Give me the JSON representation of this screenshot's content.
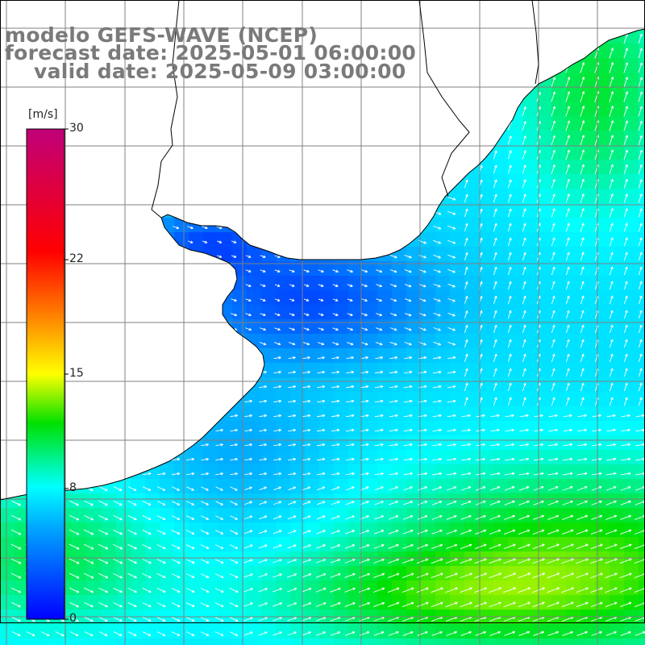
{
  "title": {
    "line1": "modelo GEFS-WAVE (NCEP)",
    "line2": "forecast date: 2025-05-01 06:00:00",
    "line3": "valid date: 2025-05-09 03:00:00"
  },
  "colorbar": {
    "unit": "[m/s]",
    "ticks": [
      {
        "value": 30,
        "label": "30"
      },
      {
        "value": 22,
        "label": "22"
      },
      {
        "value": 15,
        "label": "15"
      },
      {
        "value": 8,
        "label": "8"
      },
      {
        "value": 0,
        "label": "0"
      }
    ],
    "range": [
      0,
      30
    ]
  },
  "colors": {
    "land": "#ffffff",
    "grid": "#808080",
    "coast": "#000000",
    "arrows": "#ffffff"
  }
}
